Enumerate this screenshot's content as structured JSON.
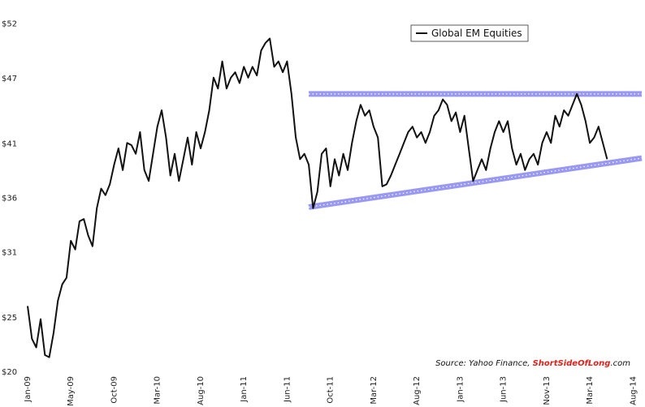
{
  "chart_data": {
    "type": "line",
    "title": "",
    "xlabel": "",
    "ylabel": "",
    "ylim": [
      20,
      52.5
    ],
    "y_ticks": [
      {
        "value": 52,
        "label": "$52"
      },
      {
        "value": 47,
        "label": "$47"
      },
      {
        "value": 41,
        "label": "$41"
      },
      {
        "value": 36,
        "label": "$36"
      },
      {
        "value": 31,
        "label": "$31"
      },
      {
        "value": 25,
        "label": "$25"
      },
      {
        "value": 20,
        "label": "$20"
      }
    ],
    "x_ticks": [
      "Jan-09",
      "May-09",
      "Oct-09",
      "Mar-10",
      "Aug-10",
      "Jan-11",
      "Jun-11",
      "Oct-11",
      "Mar-12",
      "Aug-12",
      "Jan-13",
      "Jun-13",
      "Nov-13",
      "Mar-14",
      "Aug-14"
    ],
    "x_range_months": [
      0,
      71
    ],
    "legend": {
      "label": "Global EM Equities",
      "placement": "top-right"
    },
    "grid": false,
    "series": [
      {
        "name": "Global EM Equities",
        "color": "#111111",
        "points": [
          [
            0,
            26.0
          ],
          [
            0.5,
            23.0
          ],
          [
            1,
            22.2
          ],
          [
            1.5,
            24.8
          ],
          [
            2,
            21.5
          ],
          [
            2.5,
            21.3
          ],
          [
            3,
            23.5
          ],
          [
            3.5,
            26.5
          ],
          [
            4,
            28.0
          ],
          [
            4.5,
            28.6
          ],
          [
            5,
            32.0
          ],
          [
            5.5,
            31.2
          ],
          [
            6,
            33.8
          ],
          [
            6.5,
            34.0
          ],
          [
            7,
            32.5
          ],
          [
            7.5,
            31.5
          ],
          [
            8,
            35.0
          ],
          [
            8.5,
            36.8
          ],
          [
            9,
            36.2
          ],
          [
            9.5,
            37.2
          ],
          [
            10,
            39.0
          ],
          [
            10.5,
            40.5
          ],
          [
            11,
            38.5
          ],
          [
            11.5,
            41.0
          ],
          [
            12,
            40.8
          ],
          [
            12.5,
            40.0
          ],
          [
            13,
            42.0
          ],
          [
            13.5,
            38.5
          ],
          [
            14,
            37.5
          ],
          [
            14.5,
            40.0
          ],
          [
            15,
            42.5
          ],
          [
            15.5,
            44.0
          ],
          [
            16,
            41.5
          ],
          [
            16.5,
            38.0
          ],
          [
            17,
            40.0
          ],
          [
            17.5,
            37.5
          ],
          [
            18,
            39.5
          ],
          [
            18.5,
            41.5
          ],
          [
            19,
            39.0
          ],
          [
            19.5,
            42.0
          ],
          [
            20,
            40.5
          ],
          [
            20.5,
            42.0
          ],
          [
            21,
            44.0
          ],
          [
            21.5,
            47.0
          ],
          [
            22,
            46.0
          ],
          [
            22.5,
            48.5
          ],
          [
            23,
            46.0
          ],
          [
            23.5,
            47.0
          ],
          [
            24,
            47.5
          ],
          [
            24.5,
            46.5
          ],
          [
            25,
            48.0
          ],
          [
            25.5,
            47.0
          ],
          [
            26,
            48.0
          ],
          [
            26.5,
            47.2
          ],
          [
            27,
            49.5
          ],
          [
            27.5,
            50.2
          ],
          [
            28,
            50.6
          ],
          [
            28.5,
            48.0
          ],
          [
            29,
            48.5
          ],
          [
            29.5,
            47.5
          ],
          [
            30,
            48.5
          ],
          [
            30.5,
            45.5
          ],
          [
            31,
            41.5
          ],
          [
            31.5,
            39.5
          ],
          [
            32,
            40.0
          ],
          [
            32.5,
            39.0
          ],
          [
            33,
            35.0
          ],
          [
            33.5,
            36.5
          ],
          [
            34,
            40.0
          ],
          [
            34.5,
            40.5
          ],
          [
            35,
            37.0
          ],
          [
            35.5,
            39.5
          ],
          [
            36,
            38.0
          ],
          [
            36.5,
            40.0
          ],
          [
            37,
            38.5
          ],
          [
            37.5,
            41.0
          ],
          [
            38,
            43.0
          ],
          [
            38.5,
            44.5
          ],
          [
            39,
            43.5
          ],
          [
            39.5,
            44.0
          ],
          [
            40,
            42.5
          ],
          [
            40.5,
            41.5
          ],
          [
            41,
            37.0
          ],
          [
            41.5,
            37.2
          ],
          [
            42,
            38.0
          ],
          [
            42.5,
            39.0
          ],
          [
            43,
            40.0
          ],
          [
            43.5,
            41.0
          ],
          [
            44,
            42.0
          ],
          [
            44.5,
            42.5
          ],
          [
            45,
            41.5
          ],
          [
            45.5,
            42.0
          ],
          [
            46,
            41.0
          ],
          [
            46.5,
            42.0
          ],
          [
            47,
            43.5
          ],
          [
            47.5,
            44.0
          ],
          [
            48,
            45.0
          ],
          [
            48.5,
            44.5
          ],
          [
            49,
            43.0
          ],
          [
            49.5,
            43.8
          ],
          [
            50,
            42.0
          ],
          [
            50.5,
            43.5
          ],
          [
            51,
            40.5
          ],
          [
            51.5,
            37.5
          ],
          [
            52,
            38.5
          ],
          [
            52.5,
            39.5
          ],
          [
            53,
            38.5
          ],
          [
            53.5,
            40.5
          ],
          [
            54,
            42.0
          ],
          [
            54.5,
            43.0
          ],
          [
            55,
            42.0
          ],
          [
            55.5,
            43.0
          ],
          [
            56,
            40.5
          ],
          [
            56.5,
            39.0
          ],
          [
            57,
            40.0
          ],
          [
            57.5,
            38.5
          ],
          [
            58,
            39.5
          ],
          [
            58.5,
            40.0
          ],
          [
            59,
            39.0
          ],
          [
            59.5,
            41.0
          ],
          [
            60,
            42.0
          ],
          [
            60.5,
            41.0
          ],
          [
            61,
            43.5
          ],
          [
            61.5,
            42.5
          ],
          [
            62,
            44.0
          ],
          [
            62.5,
            43.5
          ],
          [
            63,
            44.5
          ],
          [
            63.5,
            45.5
          ],
          [
            64,
            44.5
          ],
          [
            64.5,
            43.0
          ],
          [
            65,
            41.0
          ],
          [
            65.5,
            41.5
          ],
          [
            66,
            42.5
          ],
          [
            66.5,
            41.0
          ],
          [
            67,
            39.5
          ]
        ]
      }
    ],
    "trendlines": [
      {
        "name": "resistance",
        "color": "#8f8ff2",
        "from": [
          32.5,
          45.5
        ],
        "to": [
          71,
          45.5
        ]
      },
      {
        "name": "support",
        "color": "#8f8ff2",
        "from": [
          32.5,
          35.1
        ],
        "to": [
          71,
          39.6
        ]
      }
    ],
    "annotation": {
      "prefix": "Source: Yahoo Finance, ",
      "brand": "ShortSideOfLong",
      "suffix": ".com"
    }
  }
}
